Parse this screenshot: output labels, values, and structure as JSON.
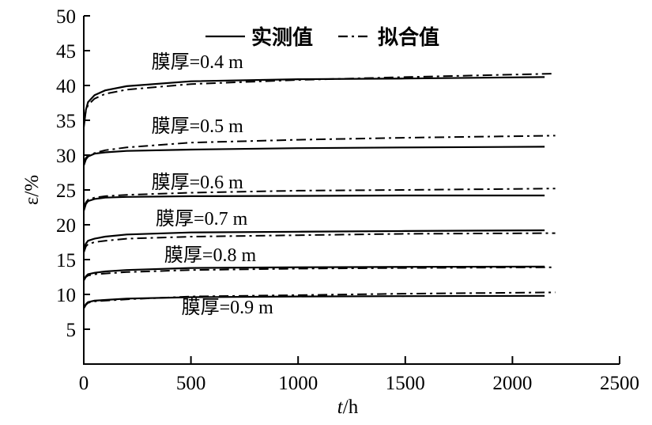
{
  "chart_data": {
    "type": "line",
    "title": "",
    "xlabel_var": "t",
    "xlabel_unit": "/h",
    "ylabel": "ε/%",
    "xlim": [
      0,
      2500
    ],
    "ylim": [
      0,
      50
    ],
    "xticks": [
      0,
      500,
      1000,
      1500,
      2000,
      2500
    ],
    "yticks": [
      5,
      10,
      15,
      20,
      25,
      30,
      35,
      40,
      45,
      50
    ],
    "grid": false,
    "legend": {
      "placement": "top-center",
      "entries": [
        {
          "label": "实测值",
          "style": "solid"
        },
        {
          "label": "拟合值",
          "style": "dash-dot"
        }
      ]
    },
    "series": [
      {
        "name": "膜厚=0.4 m",
        "label_at": [
          530,
          42.5
        ],
        "measured": {
          "t": [
            0,
            10,
            20,
            50,
            100,
            200,
            500,
            1000,
            1500,
            2150
          ],
          "e": [
            34,
            36.5,
            37.6,
            38.6,
            39.3,
            39.9,
            40.6,
            40.9,
            41.0,
            41.2
          ]
        },
        "fitted": {
          "t": [
            0,
            10,
            20,
            50,
            100,
            200,
            500,
            1000,
            1500,
            2200
          ],
          "e": [
            35,
            36.3,
            37.2,
            38.1,
            38.8,
            39.4,
            40.2,
            40.8,
            41.2,
            41.7
          ]
        }
      },
      {
        "name": "膜厚=0.5 m",
        "label_at": [
          530,
          33.3
        ],
        "measured": {
          "t": [
            0,
            10,
            20,
            50,
            100,
            200,
            500,
            1000,
            1500,
            2150
          ],
          "e": [
            28.5,
            29.4,
            29.8,
            30.2,
            30.4,
            30.6,
            30.8,
            31.0,
            31.1,
            31.2
          ]
        },
        "fitted": {
          "t": [
            0,
            10,
            20,
            50,
            100,
            200,
            500,
            1000,
            1500,
            2200
          ],
          "e": [
            29,
            29.6,
            29.9,
            30.3,
            30.7,
            31.1,
            31.8,
            32.2,
            32.5,
            32.8
          ]
        }
      },
      {
        "name": "膜厚=0.6 m",
        "label_at": [
          530,
          25.2
        ],
        "measured": {
          "t": [
            0,
            10,
            20,
            50,
            100,
            200,
            500,
            1000,
            1500,
            2150
          ],
          "e": [
            22,
            23.0,
            23.4,
            23.7,
            23.9,
            24.0,
            24.1,
            24.15,
            24.2,
            24.2
          ]
        },
        "fitted": {
          "t": [
            0,
            10,
            20,
            50,
            100,
            200,
            500,
            1000,
            1500,
            2200
          ],
          "e": [
            22.5,
            23.2,
            23.6,
            23.9,
            24.1,
            24.3,
            24.6,
            24.9,
            25.0,
            25.2
          ]
        }
      },
      {
        "name": "膜厚=0.7 m",
        "label_at": [
          550,
          20.0
        ],
        "measured": {
          "t": [
            0,
            10,
            20,
            50,
            100,
            200,
            500,
            1000,
            1500,
            2150
          ],
          "e": [
            16.5,
            17.3,
            17.7,
            18.0,
            18.3,
            18.6,
            18.9,
            19.0,
            19.1,
            19.2
          ]
        },
        "fitted": {
          "t": [
            0,
            10,
            20,
            50,
            100,
            200,
            500,
            1000,
            1500,
            2200
          ],
          "e": [
            16,
            16.9,
            17.2,
            17.5,
            17.7,
            18.0,
            18.3,
            18.5,
            18.7,
            18.8
          ]
        }
      },
      {
        "name": "膜厚=0.8 m",
        "label_at": [
          590,
          14.8
        ],
        "measured": {
          "t": [
            0,
            10,
            20,
            50,
            100,
            200,
            500,
            1000,
            1500,
            2150
          ],
          "e": [
            12,
            12.6,
            12.9,
            13.1,
            13.3,
            13.5,
            13.8,
            13.9,
            13.95,
            14.0
          ]
        },
        "fitted": {
          "t": [
            0,
            10,
            20,
            50,
            100,
            200,
            500,
            1000,
            1500,
            2200
          ],
          "e": [
            12,
            12.5,
            12.7,
            12.9,
            13.0,
            13.2,
            13.5,
            13.7,
            13.8,
            13.9
          ]
        }
      },
      {
        "name": "膜厚=0.9 m",
        "label_at": [
          670,
          7.3
        ],
        "measured": {
          "t": [
            0,
            10,
            20,
            50,
            100,
            200,
            500,
            1000,
            1500,
            2150
          ],
          "e": [
            8,
            8.6,
            8.9,
            9.1,
            9.2,
            9.4,
            9.6,
            9.7,
            9.75,
            9.8
          ]
        },
        "fitted": {
          "t": [
            0,
            10,
            20,
            50,
            100,
            200,
            500,
            1000,
            1500,
            2200
          ],
          "e": [
            8,
            8.5,
            8.8,
            9.0,
            9.1,
            9.3,
            9.7,
            9.9,
            10.1,
            10.3
          ]
        }
      }
    ]
  }
}
